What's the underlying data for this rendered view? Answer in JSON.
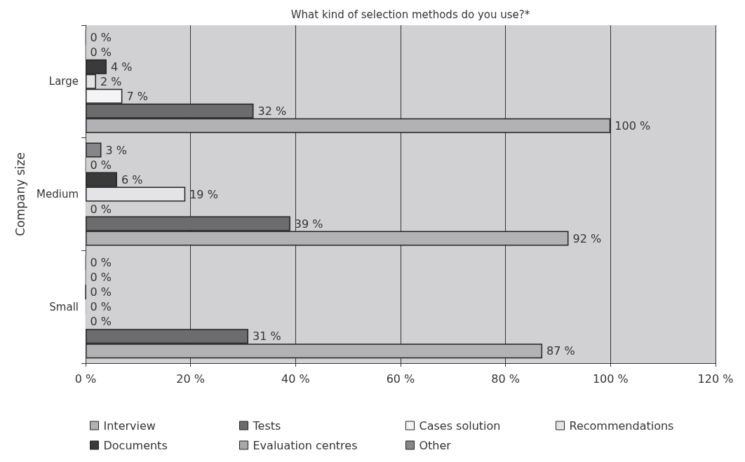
{
  "chart_data": {
    "type": "bar",
    "orientation": "horizontal",
    "title": "What kind of selection methods do you use?*",
    "ylabel": "Company size",
    "categories": [
      "Large",
      "Medium",
      "Small"
    ],
    "series": [
      {
        "name": "Other",
        "color": "#868688",
        "values": [
          0,
          3,
          0
        ],
        "value_labels": [
          "0 %",
          "3 %",
          "0 %"
        ]
      },
      {
        "name": "Evaluation centres",
        "color": "#a8a8aa",
        "values": [
          0,
          0,
          0
        ],
        "value_labels": [
          "0 %",
          "0 %",
          "0 %"
        ]
      },
      {
        "name": "Documents",
        "color": "#3a3a3a",
        "values": [
          4,
          6,
          0
        ],
        "value_labels": [
          "4 %",
          "6 %",
          "0 %"
        ]
      },
      {
        "name": "Recommendations",
        "color": "#e4e4e6",
        "values": [
          2,
          19,
          0
        ],
        "value_labels": [
          "2 %",
          "19 %",
          "0 %"
        ]
      },
      {
        "name": "Cases solution",
        "color": "#f4f4f4",
        "values": [
          7,
          0,
          0
        ],
        "value_labels": [
          "7 %",
          "0 %",
          "0 %"
        ]
      },
      {
        "name": "Tests",
        "color": "#6c6c6e",
        "values": [
          32,
          39,
          31
        ],
        "value_labels": [
          "32 %",
          "39 %",
          "31 %"
        ]
      },
      {
        "name": "Interview",
        "color": "#b2b2b4",
        "values": [
          100,
          92,
          87
        ],
        "value_labels": [
          "100 %",
          "92 %",
          "87 %"
        ]
      }
    ],
    "xlim": [
      0,
      120
    ],
    "xticks": [
      {
        "value": 0,
        "label": "0 %"
      },
      {
        "value": 20,
        "label": "20 %"
      },
      {
        "value": 40,
        "label": "40 %"
      },
      {
        "value": 60,
        "label": "60 %"
      },
      {
        "value": 80,
        "label": "80 %"
      },
      {
        "value": 100,
        "label": "100 %"
      },
      {
        "value": 120,
        "label": "120 %"
      }
    ],
    "grid": "x",
    "legend": "bottom"
  }
}
